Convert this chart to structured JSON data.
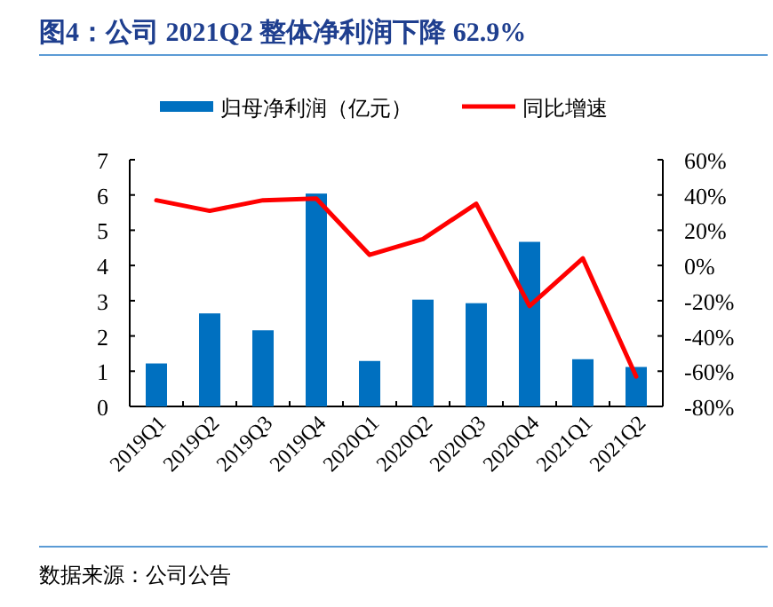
{
  "chart_data": {
    "type": "bar",
    "title": "图4：公司 2021Q2 整体净利润下降 62.9%",
    "categories": [
      "2019Q1",
      "2019Q2",
      "2019Q3",
      "2019Q4",
      "2020Q1",
      "2020Q2",
      "2020Q3",
      "2020Q4",
      "2021Q1",
      "2021Q2"
    ],
    "series": [
      {
        "name": "归母净利润（亿元）",
        "color": "#0070c0",
        "values": [
          1.22,
          2.64,
          2.16,
          6.04,
          1.29,
          3.03,
          2.93,
          4.67,
          1.34,
          1.12
        ]
      },
      {
        "name": "同比增速",
        "type": "line",
        "axis": "y2",
        "color": "#ff0000",
        "values": [
          37,
          31,
          37,
          38,
          6,
          15,
          35,
          -23,
          4,
          -63
        ]
      }
    ],
    "ylim": [
      0,
      7
    ],
    "yticks": [
      0,
      1,
      2,
      3,
      4,
      5,
      6,
      7
    ],
    "y2lim": [
      -80,
      60
    ],
    "y2ticks": [
      {
        "value": -80,
        "label": "-80%"
      },
      {
        "value": -60,
        "label": "-60%"
      },
      {
        "value": -40,
        "label": "-40%"
      },
      {
        "value": -20,
        "label": "-20%"
      },
      {
        "value": 0,
        "label": "0%"
      },
      {
        "value": 20,
        "label": "20%"
      },
      {
        "value": 40,
        "label": "40%"
      },
      {
        "value": 60,
        "label": "60%"
      }
    ],
    "legend": "top",
    "marker": "none",
    "line_style": "solid",
    "annotations": [
      "数据来源：公司公告"
    ]
  }
}
